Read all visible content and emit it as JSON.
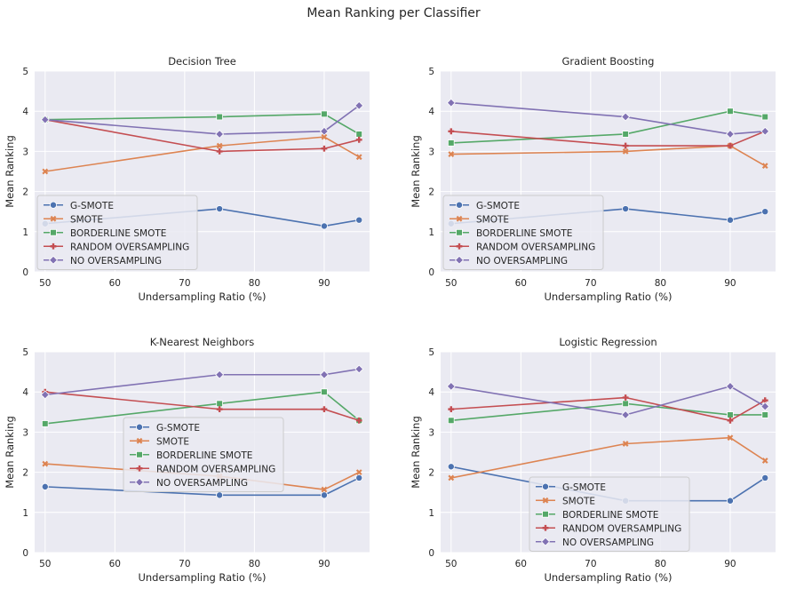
{
  "figure_title": "Mean Ranking per Classifier",
  "colors": {
    "background": "#eaeaf2",
    "grid": "#ffffff",
    "G-SMOTE": "#4c72b0",
    "SMOTE": "#dd8452",
    "BORDERLINE SMOTE": "#55a868",
    "RANDOM OVERSAMPLING": "#c44e52",
    "NO OVERSAMPLING": "#8172b3"
  },
  "chart_data": [
    {
      "type": "line",
      "title": "Decision Tree",
      "xlabel": "Undersampling Ratio (%)",
      "ylabel": "Mean Ranking",
      "x": [
        50,
        75,
        90,
        95
      ],
      "xticks": [
        50,
        60,
        70,
        80,
        90
      ],
      "yticks": [
        0,
        1,
        2,
        3,
        4,
        5
      ],
      "xlim": [
        48.5,
        96.5
      ],
      "ylim": [
        0,
        5
      ],
      "grid": true,
      "legend": "lower-left",
      "series": [
        {
          "name": "G-SMOTE",
          "marker": "circle",
          "values": [
            1.2,
            1.57,
            1.14,
            1.29
          ]
        },
        {
          "name": "SMOTE",
          "marker": "x",
          "values": [
            2.5,
            3.14,
            3.36,
            2.86
          ]
        },
        {
          "name": "BORDERLINE SMOTE",
          "marker": "square",
          "values": [
            3.79,
            3.86,
            3.93,
            3.43
          ]
        },
        {
          "name": "RANDOM OVERSAMPLING",
          "marker": "plus",
          "values": [
            3.79,
            3.0,
            3.07,
            3.29
          ]
        },
        {
          "name": "NO OVERSAMPLING",
          "marker": "diamond",
          "values": [
            3.79,
            3.43,
            3.5,
            4.14
          ]
        }
      ]
    },
    {
      "type": "line",
      "title": "Gradient Boosting",
      "xlabel": "Undersampling Ratio (%)",
      "ylabel": "Mean Ranking",
      "x": [
        50,
        75,
        90,
        95
      ],
      "xticks": [
        50,
        60,
        70,
        80,
        90
      ],
      "yticks": [
        0,
        1,
        2,
        3,
        4,
        5
      ],
      "xlim": [
        48.5,
        96.5
      ],
      "ylim": [
        0,
        5
      ],
      "grid": true,
      "legend": "lower-left",
      "series": [
        {
          "name": "G-SMOTE",
          "marker": "circle",
          "values": [
            1.2,
            1.57,
            1.29,
            1.5
          ]
        },
        {
          "name": "SMOTE",
          "marker": "x",
          "values": [
            2.93,
            3.0,
            3.14,
            2.64
          ]
        },
        {
          "name": "BORDERLINE SMOTE",
          "marker": "square",
          "values": [
            3.21,
            3.43,
            4.0,
            3.86
          ]
        },
        {
          "name": "RANDOM OVERSAMPLING",
          "marker": "plus",
          "values": [
            3.5,
            3.14,
            3.14,
            3.5
          ]
        },
        {
          "name": "NO OVERSAMPLING",
          "marker": "diamond",
          "values": [
            4.21,
            3.86,
            3.43,
            3.5
          ]
        }
      ]
    },
    {
      "type": "line",
      "title": "K-Nearest Neighbors",
      "xlabel": "Undersampling Ratio (%)",
      "ylabel": "Mean Ranking",
      "x": [
        50,
        75,
        90,
        95
      ],
      "xticks": [
        50,
        60,
        70,
        80,
        90
      ],
      "yticks": [
        0,
        1,
        2,
        3,
        4,
        5
      ],
      "xlim": [
        48.5,
        96.5
      ],
      "ylim": [
        0,
        5
      ],
      "grid": true,
      "legend": "center",
      "series": [
        {
          "name": "G-SMOTE",
          "marker": "circle",
          "values": [
            1.64,
            1.43,
            1.43,
            1.86
          ]
        },
        {
          "name": "SMOTE",
          "marker": "x",
          "values": [
            2.21,
            1.9,
            1.57,
            2.0
          ]
        },
        {
          "name": "BORDERLINE SMOTE",
          "marker": "square",
          "values": [
            3.21,
            3.71,
            4.0,
            3.29
          ]
        },
        {
          "name": "RANDOM OVERSAMPLING",
          "marker": "plus",
          "values": [
            4.0,
            3.57,
            3.57,
            3.29
          ]
        },
        {
          "name": "NO OVERSAMPLING",
          "marker": "diamond",
          "values": [
            3.93,
            4.43,
            4.43,
            4.57
          ]
        }
      ]
    },
    {
      "type": "line",
      "title": "Logistic Regression",
      "xlabel": "Undersampling Ratio (%)",
      "ylabel": "Mean Ranking",
      "x": [
        50,
        75,
        90,
        95
      ],
      "xticks": [
        50,
        60,
        70,
        80,
        90
      ],
      "yticks": [
        0,
        1,
        2,
        3,
        4,
        5
      ],
      "xlim": [
        48.5,
        96.5
      ],
      "ylim": [
        0,
        5
      ],
      "grid": true,
      "legend": "lower-center",
      "series": [
        {
          "name": "G-SMOTE",
          "marker": "circle",
          "values": [
            2.14,
            1.29,
            1.29,
            1.86
          ]
        },
        {
          "name": "SMOTE",
          "marker": "x",
          "values": [
            1.86,
            2.71,
            2.86,
            2.29
          ]
        },
        {
          "name": "BORDERLINE SMOTE",
          "marker": "square",
          "values": [
            3.29,
            3.71,
            3.43,
            3.43
          ]
        },
        {
          "name": "RANDOM OVERSAMPLING",
          "marker": "plus",
          "values": [
            3.57,
            3.86,
            3.29,
            3.79
          ]
        },
        {
          "name": "NO OVERSAMPLING",
          "marker": "diamond",
          "values": [
            4.14,
            3.43,
            4.14,
            3.64
          ]
        }
      ]
    }
  ]
}
